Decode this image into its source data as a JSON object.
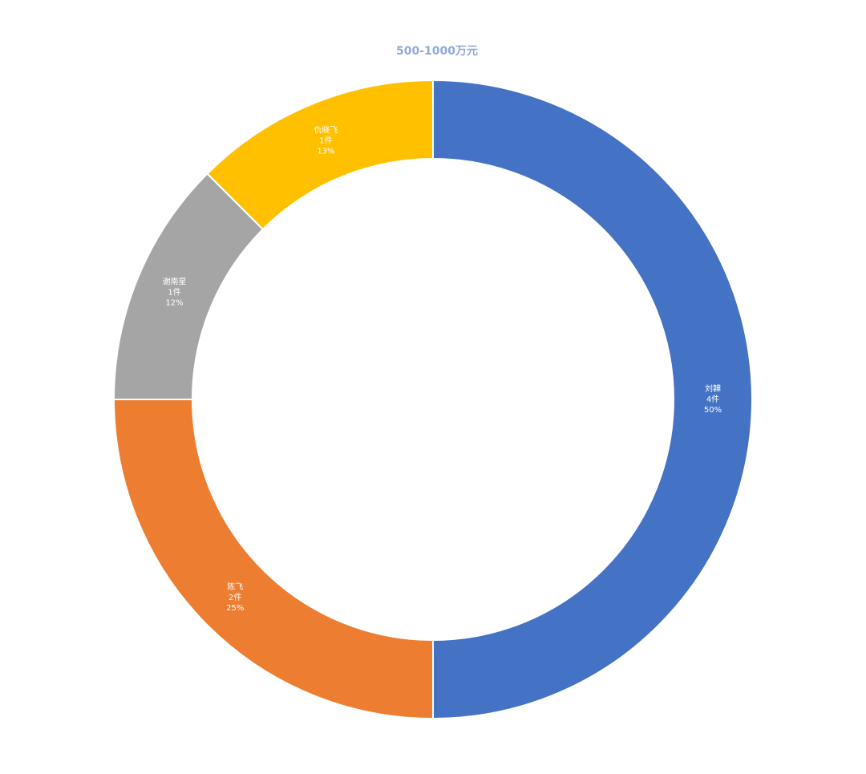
{
  "chart_data": {
    "type": "donut",
    "title": "500-1000万元",
    "categories": [
      "刘韡",
      "陈飞",
      "谢南星",
      "仇晓飞"
    ],
    "values": [
      4,
      2,
      1,
      1
    ],
    "value_labels": [
      "4件",
      "2件",
      "1件",
      "1件"
    ],
    "percent_labels": [
      "50%",
      "25%",
      "12%",
      "13%"
    ],
    "colors": [
      "#4472c4",
      "#ed7d31",
      "#a5a5a5",
      "#ffc000"
    ]
  }
}
